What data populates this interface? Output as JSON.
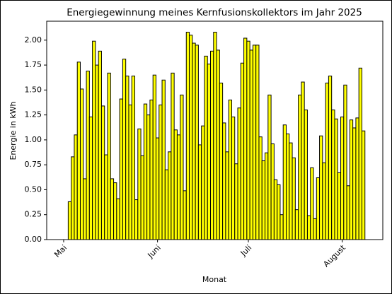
{
  "chart_data": {
    "type": "bar",
    "title": "Energiegewinnung meines Kernfusionskollektors im Jahr 2025",
    "xlabel": "Monat",
    "ylabel": "Energie in kWh",
    "color": "#ffff00",
    "edgecolor": "#000000",
    "x": [
      2,
      3,
      4,
      5,
      6,
      7,
      8,
      9,
      10,
      11,
      12,
      13,
      14,
      15,
      16,
      17,
      18,
      19,
      20,
      21,
      22,
      23,
      24,
      25,
      26,
      27,
      28,
      29,
      30,
      31,
      32,
      33,
      34,
      35,
      36,
      37,
      38,
      39,
      40,
      41,
      42,
      43,
      44,
      45,
      46,
      47,
      48,
      49,
      50,
      51,
      52,
      53,
      54,
      55,
      56,
      57,
      58,
      59,
      60,
      61,
      62,
      63,
      64,
      65,
      66,
      67,
      68,
      69,
      70,
      71,
      72,
      73,
      74,
      75,
      76,
      77,
      78,
      79,
      80,
      81,
      82,
      83,
      84,
      85,
      86,
      87,
      88,
      89,
      90,
      91,
      92,
      93,
      94,
      95,
      96,
      97,
      98,
      99
    ],
    "values": [
      0.38,
      0.83,
      1.05,
      1.78,
      1.51,
      0.61,
      1.69,
      1.23,
      1.99,
      1.75,
      1.89,
      1.34,
      0.85,
      1.67,
      0.61,
      0.57,
      0.41,
      1.41,
      1.81,
      1.64,
      1.35,
      1.64,
      0.4,
      1.11,
      0.84,
      1.36,
      1.25,
      1.4,
      1.65,
      1.02,
      1.35,
      1.6,
      0.7,
      0.88,
      1.67,
      1.1,
      1.05,
      1.45,
      0.49,
      2.08,
      2.05,
      1.97,
      1.95,
      0.95,
      1.14,
      1.84,
      1.76,
      1.89,
      2.08,
      1.9,
      1.57,
      1.17,
      0.88,
      1.4,
      1.23,
      0.76,
      1.32,
      1.77,
      2.02,
      1.99,
      1.9,
      1.95,
      1.95,
      1.03,
      0.79,
      0.87,
      1.45,
      0.96,
      0.6,
      0.55,
      0.25,
      1.15,
      1.06,
      0.97,
      0.82,
      0.3,
      1.45,
      1.58,
      1.3,
      0.24,
      0.72,
      0.21,
      0.62,
      1.04,
      0.77,
      1.57,
      1.64,
      1.3,
      1.21,
      0.67,
      1.23,
      1.55,
      0.54,
      1.2,
      1.12,
      1.22,
      1.72,
      1.09
    ],
    "xlim": [
      -5.6,
      105.4
    ],
    "xticks": [
      {
        "value": 0,
        "label": "Mai"
      },
      {
        "value": 31,
        "label": "Juni"
      },
      {
        "value": 61,
        "label": "Juli"
      },
      {
        "value": 92,
        "label": "August"
      }
    ],
    "ylim": [
      0,
      2.19
    ],
    "yticks": [
      {
        "value": 0,
        "label": "0.00"
      },
      {
        "value": 0.25,
        "label": "0.25"
      },
      {
        "value": 0.5,
        "label": "0.50"
      },
      {
        "value": 0.75,
        "label": "0.75"
      },
      {
        "value": 1,
        "label": "1.00"
      },
      {
        "value": 1.25,
        "label": "1.25"
      },
      {
        "value": 1.5,
        "label": "1.50"
      },
      {
        "value": 1.75,
        "label": "1.75"
      },
      {
        "value": 2,
        "label": "2.00"
      }
    ]
  }
}
